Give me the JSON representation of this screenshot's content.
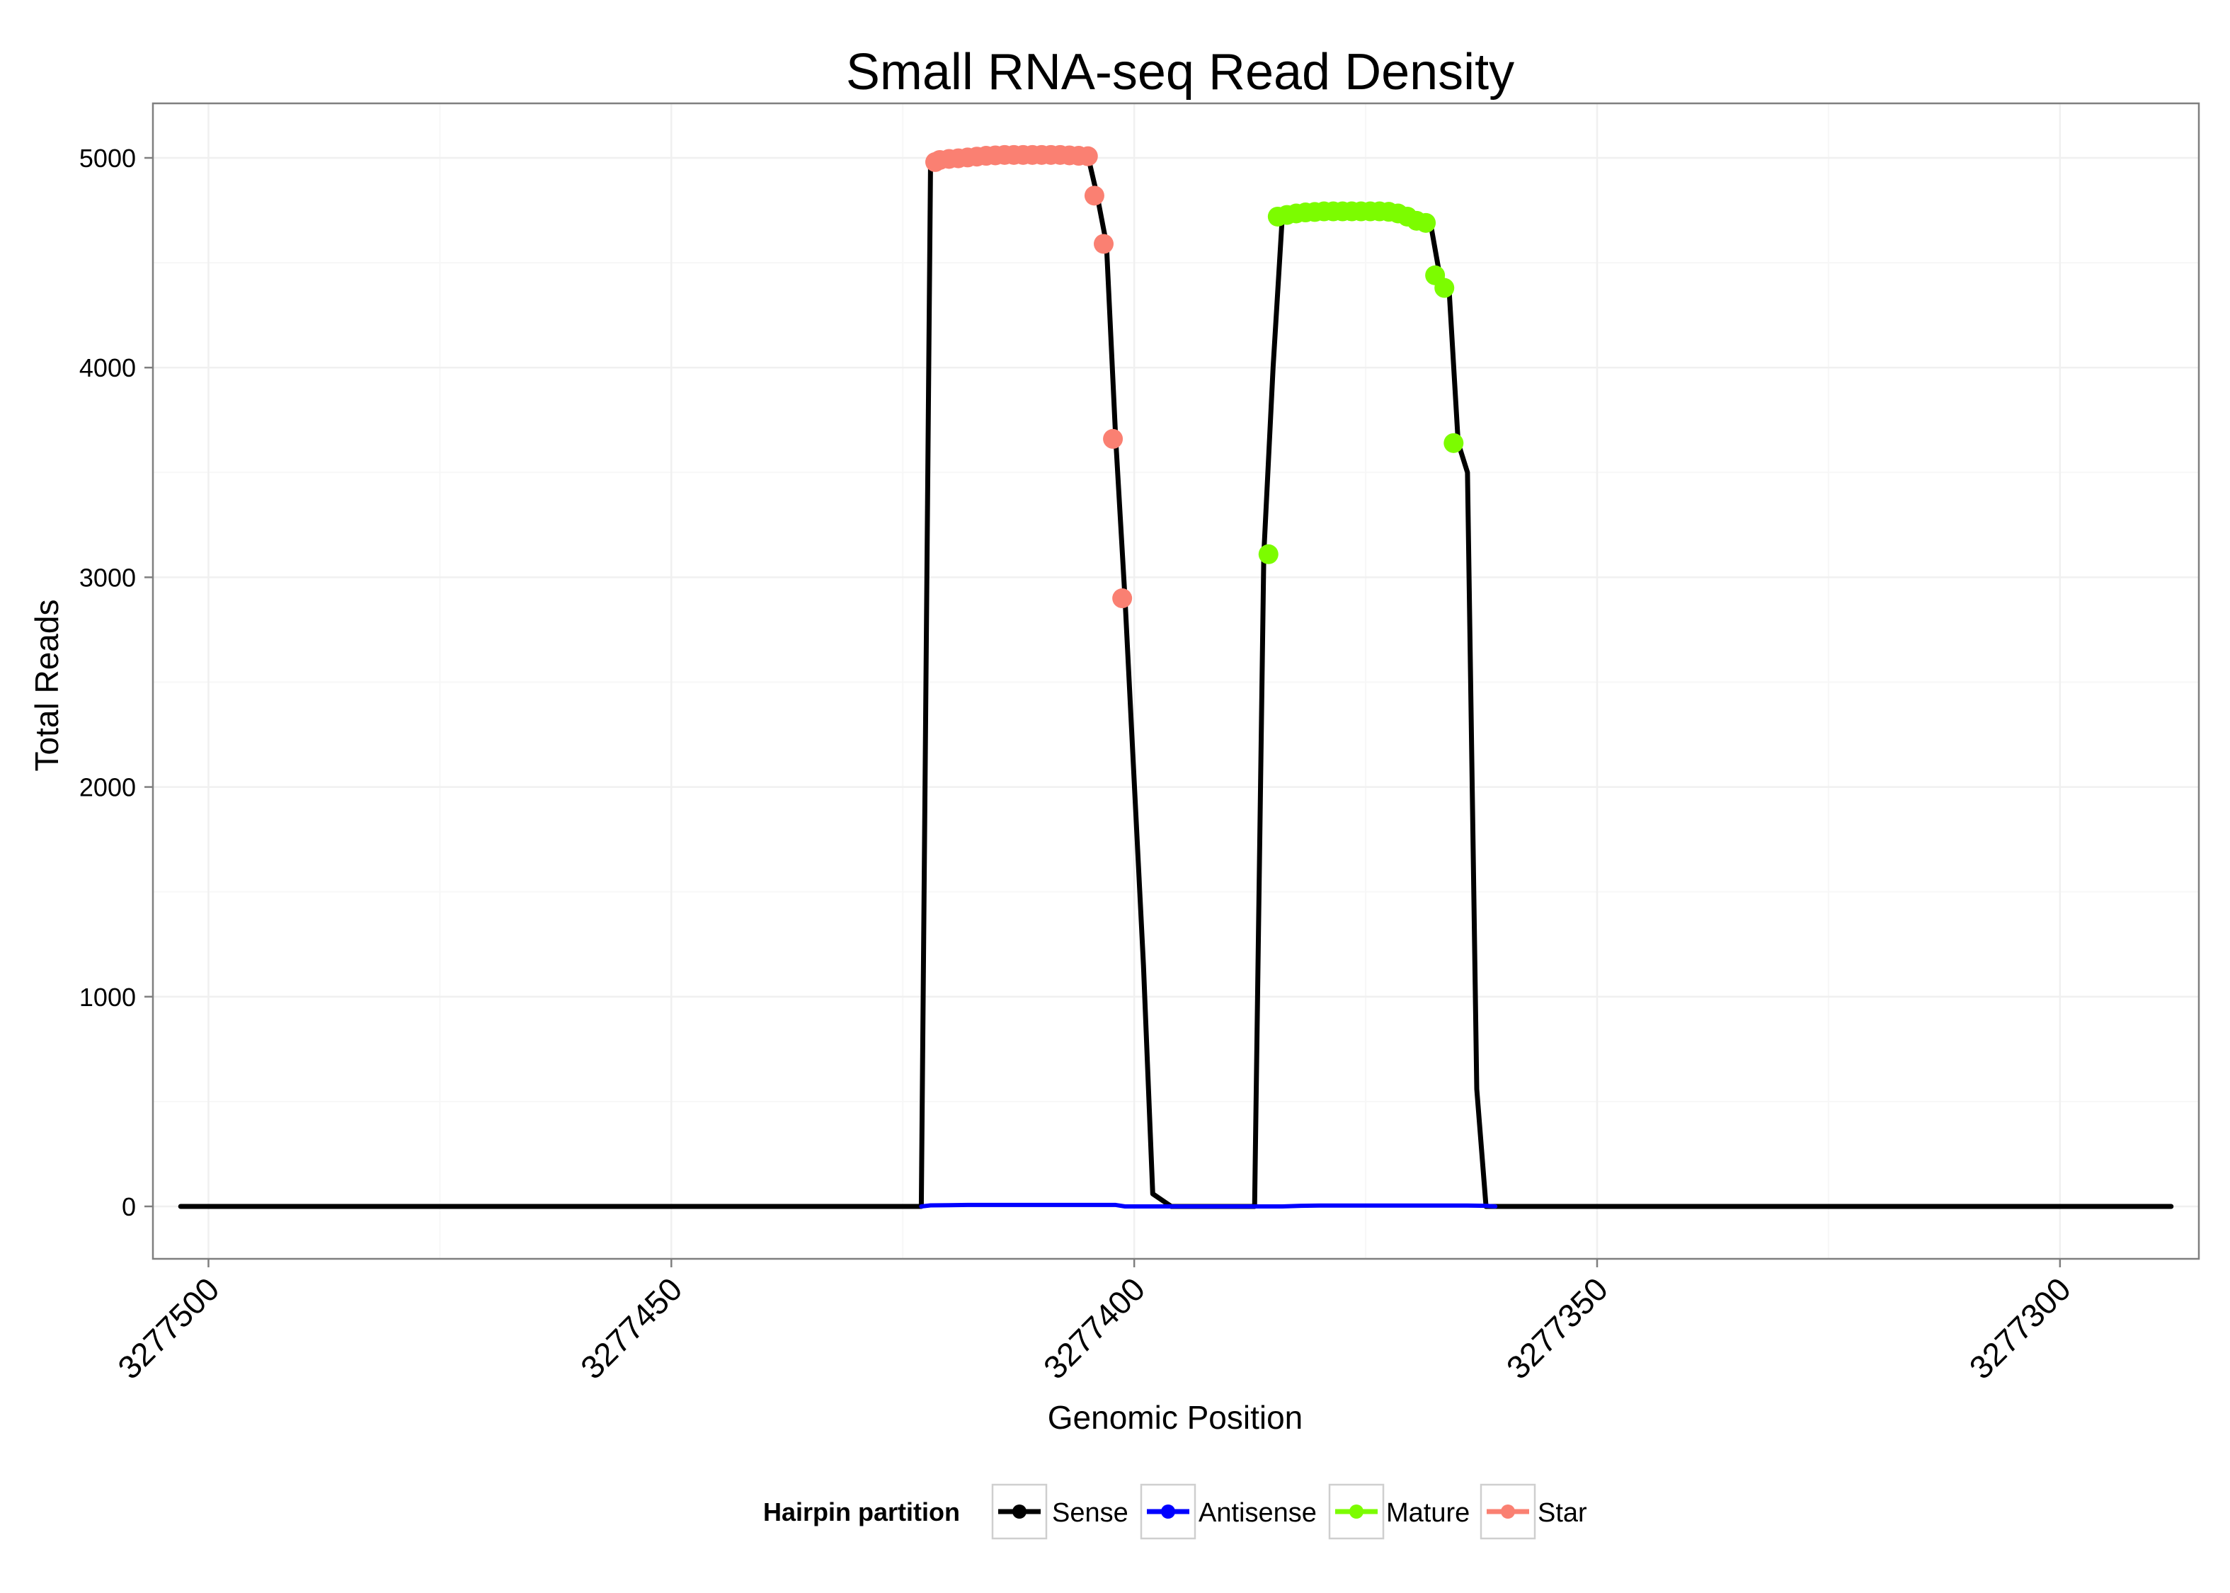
{
  "chart_data": {
    "type": "line",
    "title": "Small RNA-seq Read Density",
    "xlabel": "Genomic Position",
    "ylabel": "Total Reads",
    "x_reversed": true,
    "xlim": [
      3277285,
      3277506
    ],
    "ylim": [
      -250,
      5260
    ],
    "x_ticks": [
      3277500,
      3277450,
      3277400,
      3277350,
      3277300
    ],
    "x_tick_labels": [
      "3277500",
      "3277450",
      "3277400",
      "3277350",
      "3277300"
    ],
    "y_ticks": [
      0,
      1000,
      2000,
      3000,
      4000,
      5000
    ],
    "y_tick_labels": [
      "0",
      "1000",
      "2000",
      "3000",
      "4000",
      "5000"
    ],
    "grid": true,
    "legend": {
      "title": "Hairpin partition",
      "position": "bottom",
      "entries": [
        {
          "name": "Sense",
          "color": "#000000"
        },
        {
          "name": "Antisense",
          "color": "#0000ff"
        },
        {
          "name": "Mature",
          "color": "#7cfc00"
        },
        {
          "name": "Star",
          "color": "#fa8072"
        }
      ]
    },
    "series": [
      {
        "name": "Sense",
        "style": "line",
        "color": "#000000",
        "x": [
          3277503,
          3277423,
          3277422,
          3277420,
          3277418,
          3277416,
          3277414,
          3277412,
          3277410,
          3277408,
          3277406,
          3277405,
          3277404,
          3277403,
          3277402,
          3277401,
          3277399,
          3277398,
          3277396,
          3277395,
          3277387,
          3277386,
          3277385,
          3277384,
          3277382,
          3277380,
          3277378,
          3277376,
          3277374,
          3277372,
          3277370,
          3277369,
          3277368,
          3277367,
          3277366,
          3277365,
          3277364,
          3277363,
          3277362,
          3277361,
          3277357,
          3277349,
          3277319,
          3277301,
          3277288
        ],
        "y": [
          0,
          0,
          4990,
          4995,
          5002,
          5008,
          5012,
          5014,
          5014,
          5014,
          5012,
          5008,
          4820,
          4590,
          3660,
          2900,
          1150,
          60,
          0,
          0,
          0,
          3110,
          4000,
          4725,
          4740,
          4745,
          4745,
          4745,
          4745,
          4744,
          4730,
          4700,
          4690,
          4440,
          4380,
          3640,
          3500,
          560,
          0,
          0,
          0,
          0,
          0,
          0,
          0
        ]
      },
      {
        "name": "Antisense",
        "style": "line",
        "color": "#0000ff",
        "x": [
          3277423,
          3277422,
          3277420,
          3277418,
          3277416,
          3277414,
          3277412,
          3277410,
          3277408,
          3277406,
          3277404,
          3277402,
          3277401,
          3277399,
          3277397,
          3277395,
          3277393,
          3277391,
          3277389,
          3277387,
          3277386,
          3277384,
          3277382,
          3277380,
          3277378,
          3277376,
          3277374,
          3277372,
          3277370,
          3277368,
          3277366,
          3277364,
          3277362,
          3277361
        ],
        "y": [
          0,
          5,
          6,
          7,
          7,
          7,
          7,
          7,
          7,
          7,
          7,
          7,
          0,
          0,
          0,
          0,
          0,
          0,
          0,
          0,
          0,
          0,
          3,
          4,
          4,
          4,
          4,
          4,
          4,
          4,
          4,
          4,
          3,
          0
        ]
      },
      {
        "name": "Mature",
        "style": "points",
        "color": "#7cfc00",
        "x": [
          3277385.5,
          3277384.5,
          3277383.5,
          3277382.5,
          3277381.5,
          3277380.5,
          3277379.5,
          3277378.5,
          3277377.5,
          3277376.5,
          3277375.5,
          3277374.5,
          3277373.5,
          3277372.5,
          3277371.5,
          3277370.5,
          3277369.5,
          3277368.5,
          3277367.5,
          3277366.5,
          3277365.5
        ],
        "y": [
          3110,
          4720,
          4728,
          4735,
          4740,
          4742,
          4745,
          4745,
          4745,
          4745,
          4745,
          4745,
          4745,
          4743,
          4735,
          4720,
          4700,
          4690,
          4440,
          4380,
          3640
        ]
      },
      {
        "name": "Star",
        "style": "points",
        "color": "#fa8072",
        "x": [
          3277421.5,
          3277421,
          3277420,
          3277419,
          3277418,
          3277417,
          3277416,
          3277415,
          3277414,
          3277413,
          3277412,
          3277411,
          3277410,
          3277409,
          3277408,
          3277407,
          3277406,
          3277405,
          3277404.3,
          3277403.3,
          3277402.3,
          3277401.3
        ],
        "y": [
          4980,
          4990,
          4995,
          4998,
          5002,
          5006,
          5010,
          5012,
          5014,
          5014,
          5014,
          5014,
          5014,
          5014,
          5014,
          5012,
          5010,
          5008,
          4820,
          4590,
          3660,
          2900
        ]
      }
    ]
  }
}
